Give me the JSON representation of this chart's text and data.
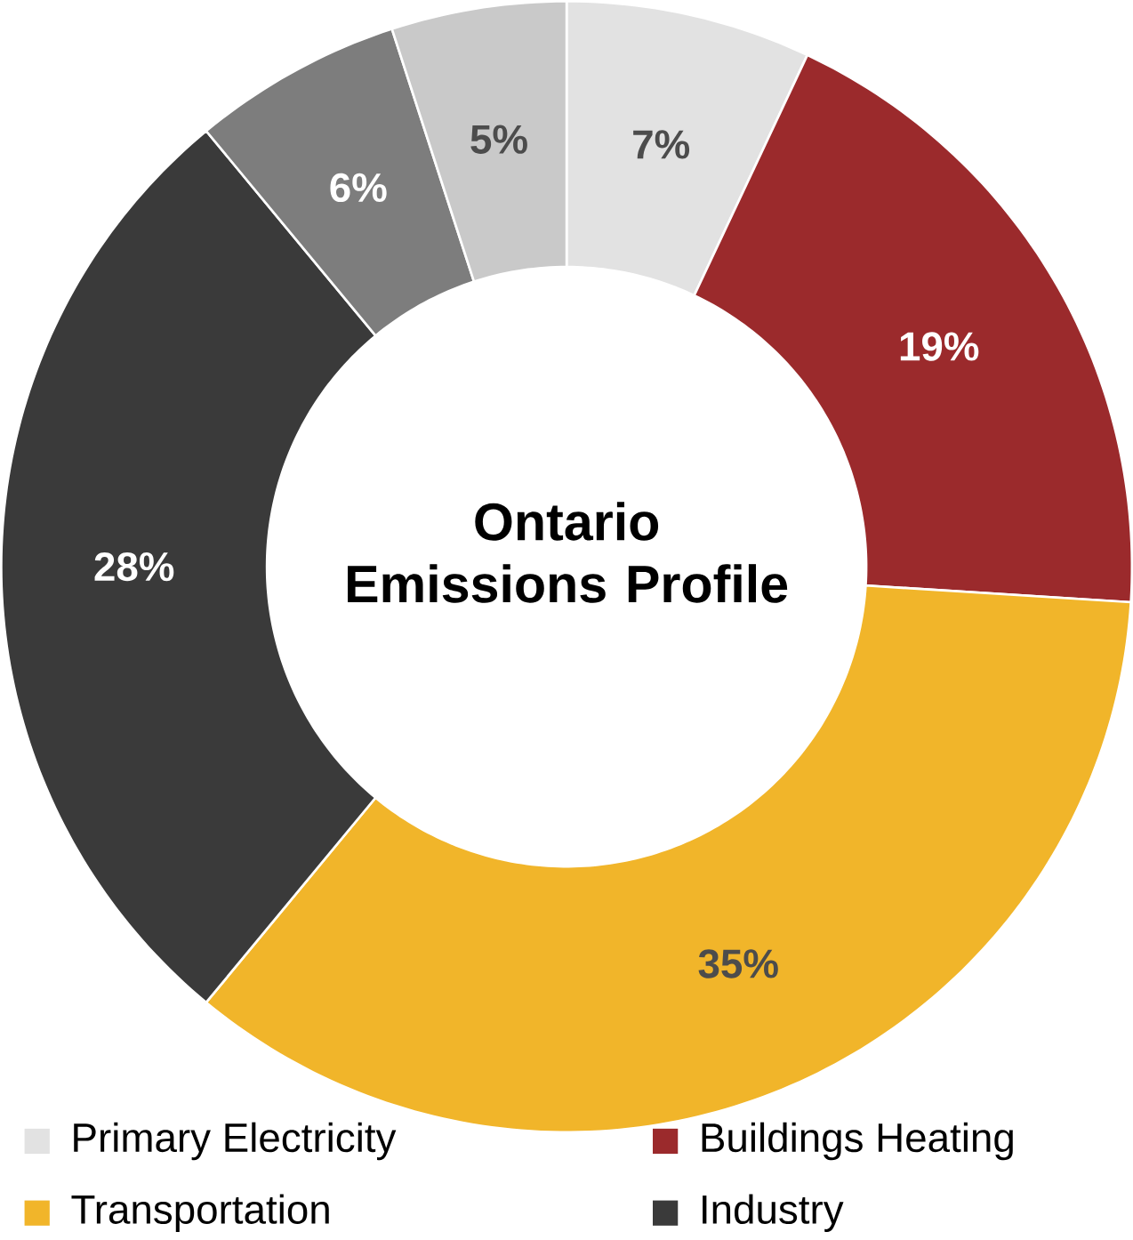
{
  "chart_data": {
    "type": "donut",
    "title": "Ontario Emissions Profile",
    "categories": [
      "Primary Electricity",
      "Buildings Heating",
      "Transportation",
      "Industry",
      null,
      null
    ],
    "values": [
      7,
      19,
      35,
      28,
      6,
      5
    ],
    "colors": [
      "#e2e2e2",
      "#9b2a2c",
      "#f1b52a",
      "#3a3a3a",
      "#7d7d7d",
      "#c9c9c9"
    ],
    "value_labels": [
      "7%",
      "19%",
      "35%",
      "28%",
      "6%",
      "5%"
    ],
    "legend": "bottom"
  }
}
